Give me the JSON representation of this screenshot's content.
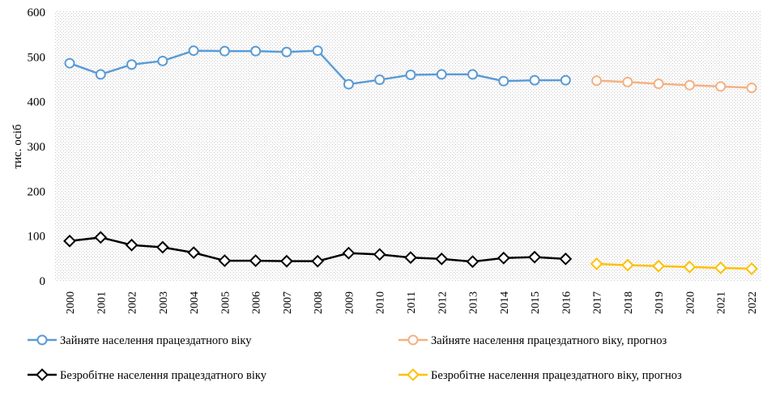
{
  "chart_data": {
    "type": "line",
    "ylabel": "тис. осіб",
    "ylim": [
      0,
      600
    ],
    "yticks": [
      0,
      100,
      200,
      300,
      400,
      500,
      600
    ],
    "grid": "dotted-background",
    "legend_position": "bottom",
    "categories": [
      "2000",
      "2001",
      "2002",
      "2003",
      "2004",
      "2005",
      "2006",
      "2007",
      "2008",
      "2009",
      "2010",
      "2011",
      "2012",
      "2013",
      "2014",
      "2015",
      "2016",
      "2017",
      "2018",
      "2019",
      "2020",
      "2021",
      "2022"
    ],
    "series": [
      {
        "name": "Зайняте населення працездатного віку",
        "marker": "circle",
        "color": "#5b9bd5",
        "x": [
          "2000",
          "2001",
          "2002",
          "2003",
          "2004",
          "2005",
          "2006",
          "2007",
          "2008",
          "2009",
          "2010",
          "2011",
          "2012",
          "2013",
          "2014",
          "2015",
          "2016"
        ],
        "values": [
          486,
          461,
          483,
          491,
          514,
          513,
          513,
          511,
          514,
          439,
          449,
          460,
          461,
          461,
          446,
          448,
          448
        ]
      },
      {
        "name": "Зайняте населення працездатного віку, прогноз",
        "marker": "circle",
        "color": "#f4b183",
        "x": [
          "2017",
          "2018",
          "2019",
          "2020",
          "2021",
          "2022"
        ],
        "values": [
          447,
          444,
          440,
          437,
          434,
          431
        ]
      },
      {
        "name": "Безробітне населення працездатного віку",
        "marker": "diamond",
        "color": "#000000",
        "x": [
          "2000",
          "2001",
          "2002",
          "2003",
          "2004",
          "2005",
          "2006",
          "2007",
          "2008",
          "2009",
          "2010",
          "2011",
          "2012",
          "2013",
          "2014",
          "2015",
          "2016"
        ],
        "values": [
          89,
          97,
          80,
          75,
          63,
          45,
          45,
          44,
          44,
          62,
          59,
          52,
          49,
          43,
          51,
          53,
          49
        ]
      },
      {
        "name": "Безробітне населення працездатного віку, прогноз",
        "marker": "diamond",
        "color": "#ffc000",
        "x": [
          "2017",
          "2018",
          "2019",
          "2020",
          "2021",
          "2022"
        ],
        "values": [
          38,
          35,
          33,
          31,
          29,
          27
        ]
      }
    ]
  }
}
